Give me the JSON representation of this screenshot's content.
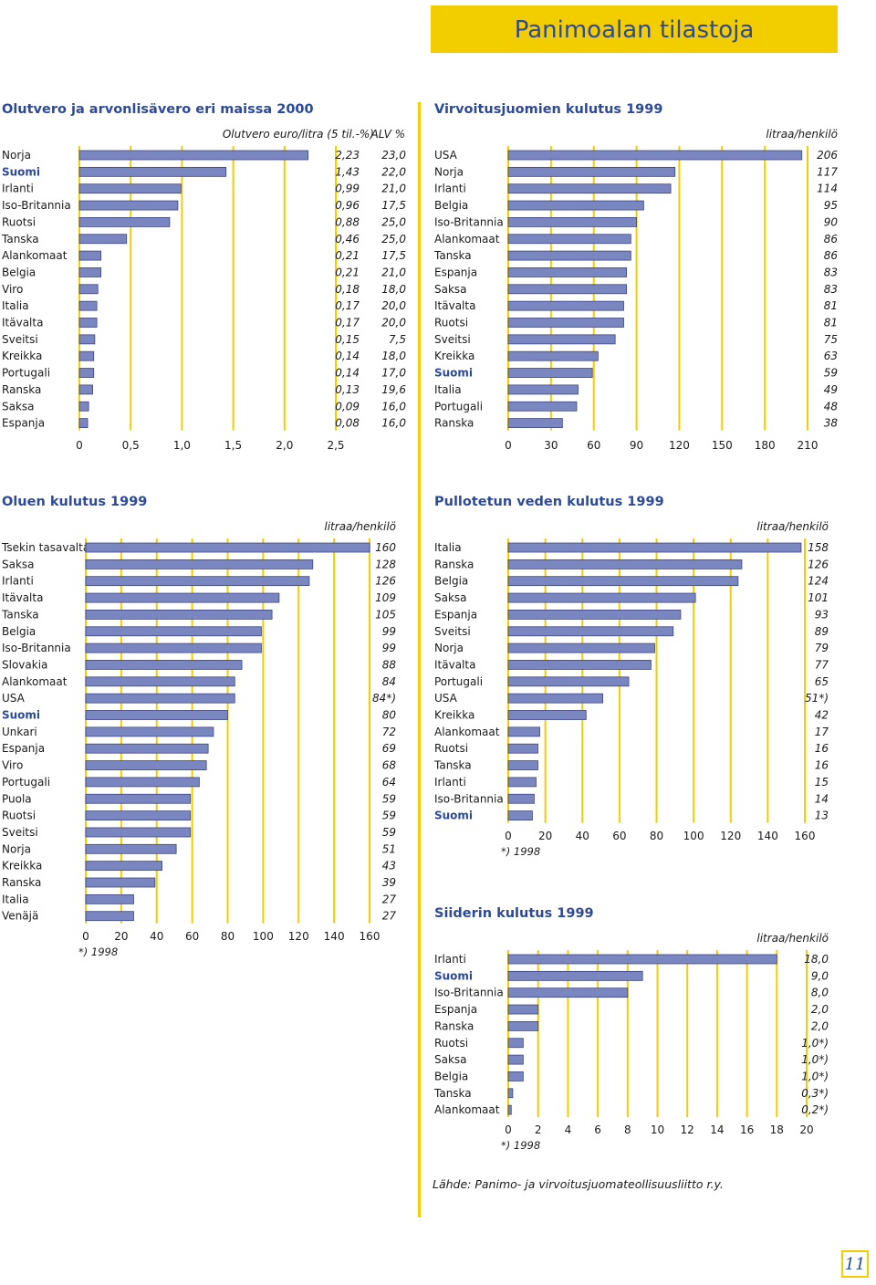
{
  "header": {
    "title": "Panimoalan tilastoja"
  },
  "colors": {
    "accent": "#f2cd00",
    "bar": "#7a86c0",
    "bar_border": "#3c4585",
    "highlight_text": "#2d4a99"
  },
  "footer": {
    "source": "Lähde: Panimo- ja virvoitusjuomateollisuusliitto r.y.",
    "page_number": "11"
  },
  "chart_data": [
    {
      "id": "olutvero",
      "type": "bar",
      "orientation": "horizontal",
      "title": "Olutvero ja arvonlisävero eri maissa 2000",
      "unit": "Olutvero euro/litra (5 til.-%)",
      "unit2": "ALV %",
      "categories": [
        "Norja",
        "Suomi",
        "Irlanti",
        "Iso-Britannia",
        "Ruotsi",
        "Tanska",
        "Alankomaat",
        "Belgia",
        "Viro",
        "Italia",
        "Itävalta",
        "Sveitsi",
        "Kreikka",
        "Portugali",
        "Ranska",
        "Saksa",
        "Espanja"
      ],
      "highlight": [
        "Suomi"
      ],
      "values": [
        2.23,
        1.43,
        0.99,
        0.96,
        0.88,
        0.46,
        0.21,
        0.21,
        0.18,
        0.17,
        0.17,
        0.15,
        0.14,
        0.14,
        0.13,
        0.09,
        0.08
      ],
      "value_labels": [
        "2,23",
        "1,43",
        "0,99",
        "0,96",
        "0,88",
        "0,46",
        "0,21",
        "0,21",
        "0,18",
        "0,17",
        "0,17",
        "0,15",
        "0,14",
        "0,14",
        "0,13",
        "0,09",
        "0,08"
      ],
      "secondary_series": {
        "values": [
          23.0,
          22.0,
          21.0,
          17.5,
          25.0,
          25.0,
          17.5,
          21.0,
          18.0,
          20.0,
          20.0,
          7.5,
          18.0,
          17.0,
          19.6,
          16.0,
          16.0
        ],
        "value_labels": [
          "23,0",
          "22,0",
          "21,0",
          "17,5",
          "25,0",
          "25,0",
          "17,5",
          "21,0",
          "18,0",
          "20,0",
          "20,0",
          "7,5",
          "18,0",
          "17,0",
          "19,6",
          "16,0",
          "16,0"
        ]
      },
      "xticks": [
        0,
        0.5,
        1.0,
        1.5,
        2.0,
        2.5
      ],
      "xtick_labels": [
        "0",
        "0,5",
        "1,0",
        "1,5",
        "2,0",
        "2,5"
      ],
      "xlim": [
        0,
        2.5
      ],
      "note": ""
    },
    {
      "id": "virvoitus",
      "type": "bar",
      "orientation": "horizontal",
      "title": "Virvoitusjuomien kulutus 1999",
      "unit": "litraa/henkilö",
      "categories": [
        "USA",
        "Norja",
        "Irlanti",
        "Belgia",
        "Iso-Britannia",
        "Alankomaat",
        "Tanska",
        "Espanja",
        "Saksa",
        "Itävalta",
        "Ruotsi",
        "Sveitsi",
        "Kreikka",
        "Suomi",
        "Italia",
        "Portugali",
        "Ranska"
      ],
      "highlight": [
        "Suomi"
      ],
      "values": [
        206,
        117,
        114,
        95,
        90,
        86,
        86,
        83,
        83,
        81,
        81,
        75,
        63,
        59,
        49,
        48,
        38
      ],
      "value_labels": [
        "206",
        "117",
        "114",
        "95",
        "90",
        "86",
        "86",
        "83",
        "83",
        "81",
        "81",
        "75",
        "63",
        "59",
        "49",
        "48",
        "38"
      ],
      "xticks": [
        0,
        30,
        60,
        90,
        120,
        150,
        180,
        210
      ],
      "xtick_labels": [
        "0",
        "30",
        "60",
        "90",
        "120",
        "150",
        "180",
        "210"
      ],
      "xlim": [
        0,
        210
      ],
      "note": ""
    },
    {
      "id": "olut",
      "type": "bar",
      "orientation": "horizontal",
      "title": "Oluen kulutus 1999",
      "unit": "litraa/henkilö",
      "categories": [
        "Tsekin tasavalta",
        "Saksa",
        "Irlanti",
        "Itävalta",
        "Tanska",
        "Belgia",
        "Iso-Britannia",
        "Slovakia",
        "Alankomaat",
        "USA",
        "Suomi",
        "Unkari",
        "Espanja",
        "Viro",
        "Portugali",
        "Puola",
        "Ruotsi",
        "Sveitsi",
        "Norja",
        "Kreikka",
        "Ranska",
        "Italia",
        "Venäjä"
      ],
      "highlight": [
        "Suomi"
      ],
      "values": [
        160,
        128,
        126,
        109,
        105,
        99,
        99,
        88,
        84,
        84,
        80,
        72,
        69,
        68,
        64,
        59,
        59,
        59,
        51,
        43,
        39,
        27,
        27
      ],
      "value_labels": [
        "160",
        "128",
        "126",
        "109",
        "105",
        "99",
        "99",
        "88",
        "84",
        "84*)",
        "80",
        "72",
        "69",
        "68",
        "64",
        "59",
        "59",
        "59",
        "51",
        "43",
        "39",
        "27",
        "27"
      ],
      "xticks": [
        0,
        20,
        40,
        60,
        80,
        100,
        120,
        140,
        160
      ],
      "xtick_labels": [
        "0",
        "20",
        "40",
        "60",
        "80",
        "100",
        "120",
        "140",
        "160"
      ],
      "xlim": [
        0,
        160
      ],
      "note": "*) 1998"
    },
    {
      "id": "pullovesi",
      "type": "bar",
      "orientation": "horizontal",
      "title": "Pullotetun veden kulutus 1999",
      "unit": "litraa/henkilö",
      "categories": [
        "Italia",
        "Ranska",
        "Belgia",
        "Saksa",
        "Espanja",
        "Sveitsi",
        "Norja",
        "Itävalta",
        "Portugali",
        "USA",
        "Kreikka",
        "Alankomaat",
        "Ruotsi",
        "Tanska",
        "Irlanti",
        "Iso-Britannia",
        "Suomi"
      ],
      "highlight": [
        "Suomi"
      ],
      "values": [
        158,
        126,
        124,
        101,
        93,
        89,
        79,
        77,
        65,
        51,
        42,
        17,
        16,
        16,
        15,
        14,
        13
      ],
      "value_labels": [
        "158",
        "126",
        "124",
        "101",
        "93",
        "89",
        "79",
        "77",
        "65",
        "51*)",
        "42",
        "17",
        "16",
        "16",
        "15",
        "14",
        "13"
      ],
      "xticks": [
        0,
        20,
        40,
        60,
        80,
        100,
        120,
        140,
        160
      ],
      "xtick_labels": [
        "0",
        "20",
        "40",
        "60",
        "80",
        "100",
        "120",
        "140",
        "160"
      ],
      "xlim": [
        0,
        160
      ],
      "note": "*) 1998"
    },
    {
      "id": "siideri",
      "type": "bar",
      "orientation": "horizontal",
      "title": "Siiderin kulutus 1999",
      "unit": "litraa/henkilö",
      "categories": [
        "Irlanti",
        "Suomi",
        "Iso-Britannia",
        "Espanja",
        "Ranska",
        "Ruotsi",
        "Saksa",
        "Belgia",
        "Tanska",
        "Alankomaat"
      ],
      "highlight": [
        "Suomi"
      ],
      "values": [
        18.0,
        9.0,
        8.0,
        2.0,
        2.0,
        1.0,
        1.0,
        1.0,
        0.3,
        0.2
      ],
      "value_labels": [
        "18,0",
        "9,0",
        "8,0",
        "2,0",
        "2,0",
        "1,0*)",
        "1,0*)",
        "1,0*)",
        "0,3*)",
        "0,2*)"
      ],
      "xticks": [
        0,
        2,
        4,
        6,
        8,
        10,
        12,
        14,
        16,
        18,
        20
      ],
      "xtick_labels": [
        "0",
        "2",
        "4",
        "6",
        "8",
        "10",
        "12",
        "14",
        "16",
        "18",
        "20"
      ],
      "xlim": [
        0,
        20
      ],
      "note": "*) 1998"
    }
  ]
}
